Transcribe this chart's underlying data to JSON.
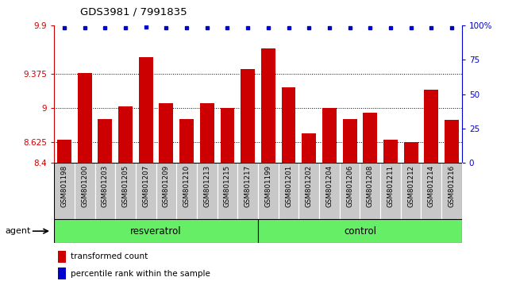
{
  "title": "GDS3981 / 7991835",
  "samples": [
    "GSM801198",
    "GSM801200",
    "GSM801203",
    "GSM801205",
    "GSM801207",
    "GSM801209",
    "GSM801210",
    "GSM801213",
    "GSM801215",
    "GSM801217",
    "GSM801199",
    "GSM801201",
    "GSM801202",
    "GSM801204",
    "GSM801206",
    "GSM801208",
    "GSM801211",
    "GSM801212",
    "GSM801214",
    "GSM801216"
  ],
  "bar_values": [
    8.65,
    9.38,
    8.88,
    9.02,
    9.55,
    9.05,
    8.88,
    9.05,
    9.0,
    9.42,
    9.65,
    9.22,
    8.72,
    9.0,
    8.88,
    8.95,
    8.65,
    8.63,
    9.2,
    8.87
  ],
  "percentile_values": [
    98,
    98,
    98,
    98,
    99,
    98,
    98,
    98,
    98,
    98,
    98,
    98,
    98,
    98,
    98,
    98,
    98,
    98,
    98,
    98
  ],
  "resveratrol_count": 10,
  "control_count": 10,
  "bar_color": "#CC0000",
  "percentile_color": "#0000CC",
  "ylim_left": [
    8.4,
    9.9
  ],
  "ylim_right": [
    0,
    100
  ],
  "yticks_left": [
    8.4,
    8.625,
    9.0,
    9.375,
    9.9
  ],
  "yticks_right": [
    0,
    25,
    50,
    75,
    100
  ],
  "ytick_labels_left": [
    "8.4",
    "8.625",
    "9",
    "9.375",
    "9.9"
  ],
  "ytick_labels_right": [
    "0",
    "25",
    "50",
    "75",
    "100%"
  ],
  "hlines": [
    8.625,
    9.0,
    9.375
  ],
  "group_labels": [
    "resveratrol",
    "control"
  ],
  "legend_bar_label": "transformed count",
  "legend_dot_label": "percentile rank within the sample",
  "bar_color_legend": "#CC0000",
  "percentile_color_legend": "#0000CC",
  "green_band_color": "#66ee66",
  "sample_bg_color": "#c8c8c8",
  "agent_label": "agent"
}
